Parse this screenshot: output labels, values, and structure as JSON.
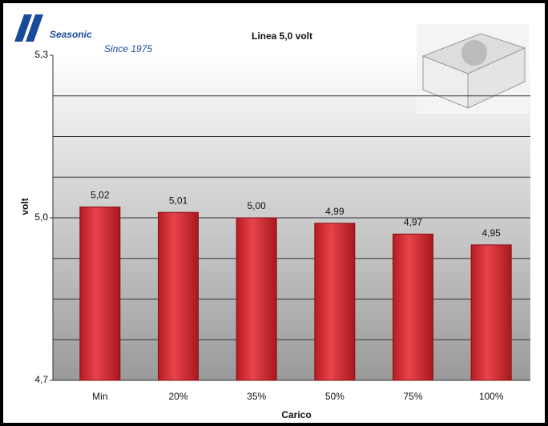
{
  "chart_data": {
    "type": "bar",
    "title": "Linea 5,0 volt",
    "brand": "Seasonic",
    "brand_tagline": "Since 1975",
    "x_label": "Carico",
    "y_label": "volt",
    "categories": [
      "Min",
      "20%",
      "35%",
      "50%",
      "75%",
      "100%"
    ],
    "values": [
      5.02,
      5.01,
      5.0,
      4.99,
      4.97,
      4.95
    ],
    "value_labels": [
      "5,02",
      "5,01",
      "5,00",
      "4,99",
      "4,97",
      "4,95"
    ],
    "color": "#d42a30",
    "ylim": [
      4.7,
      5.3
    ],
    "yticks": [
      {
        "value": 4.7,
        "label": "4,7"
      },
      {
        "value": 5.0,
        "label": "5,0"
      },
      {
        "value": 5.3,
        "label": "5,3"
      }
    ],
    "grid_yticks": [
      4.775,
      4.85,
      4.925,
      5.0,
      5.075,
      5.15,
      5.225
    ],
    "grid": true
  }
}
